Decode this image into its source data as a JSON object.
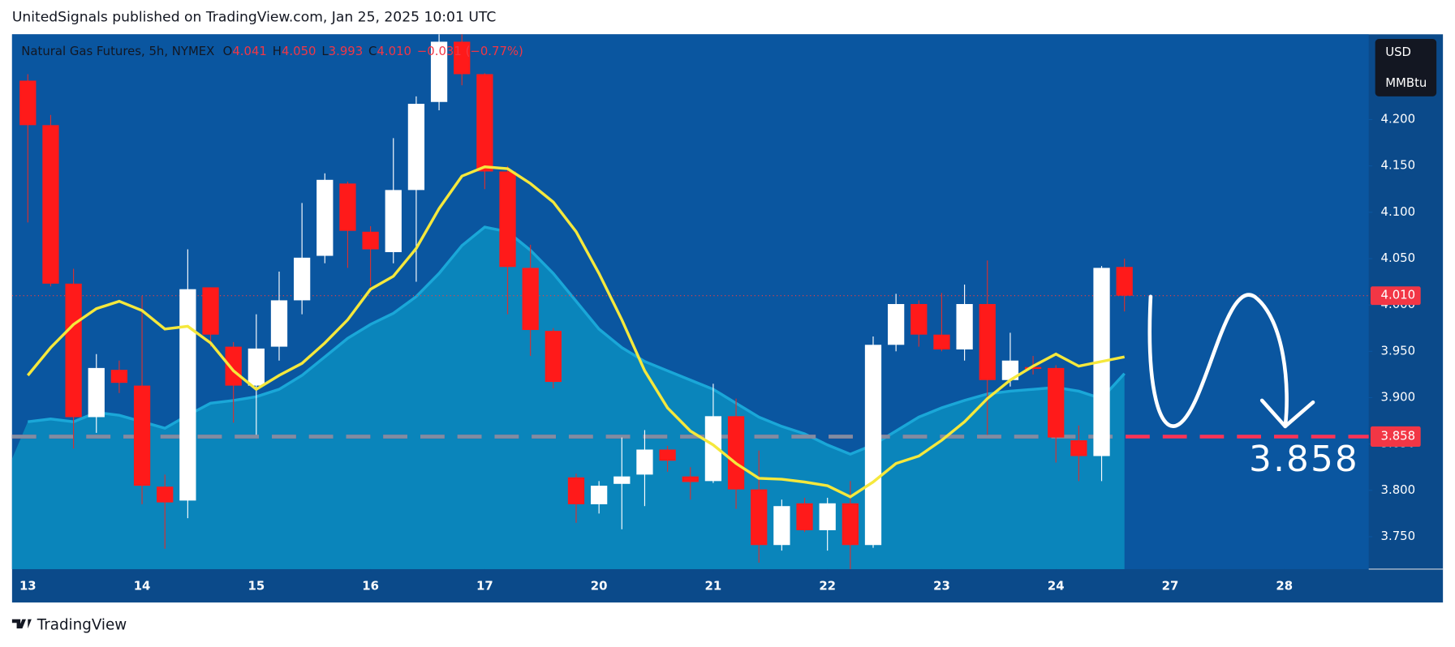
{
  "header": {
    "published": "UnitedSignals published on TradingView.com, Jan 25, 2025 10:01 UTC",
    "brand": "TradingView"
  },
  "chart_data": {
    "type": "candlestick",
    "title": "Natural Gas Futures, 5h, NYMEX",
    "legend_keys": [
      "O",
      "H",
      "L",
      "C"
    ],
    "legend_values": [
      "4.041",
      "4.050",
      "3.993",
      "4.010"
    ],
    "change": "−0.031 (−0.77%)",
    "currency": "USD",
    "unit": "MMBtu",
    "open": [
      4.242,
      4.194,
      4.023,
      3.879,
      3.93,
      3.913,
      3.804,
      3.789,
      4.019,
      3.955,
      3.913,
      3.955,
      4.005,
      4.053,
      4.131,
      4.079,
      4.057,
      4.124,
      4.219,
      4.284,
      4.249,
      4.144,
      4.04,
      3.972,
      3.814,
      3.785,
      3.807,
      3.817,
      3.844,
      3.815,
      3.81,
      3.88,
      3.801,
      3.741,
      3.786,
      3.757,
      3.786,
      3.741,
      3.957,
      4.001,
      3.968,
      3.952,
      4.001,
      3.919,
      3.933,
      3.932,
      3.854,
      3.837,
      4.041
    ],
    "high": [
      4.249,
      4.205,
      4.039,
      3.947,
      3.94,
      4.01,
      3.817,
      4.06,
      4.019,
      3.96,
      3.99,
      4.036,
      4.11,
      4.142,
      4.133,
      4.085,
      4.18,
      4.225,
      4.292,
      4.292,
      4.25,
      4.15,
      4.065,
      3.975,
      3.818,
      3.81,
      3.857,
      3.865,
      3.848,
      3.825,
      3.915,
      3.899,
      3.843,
      3.79,
      3.792,
      3.792,
      3.81,
      3.966,
      4.012,
      4.005,
      4.013,
      4.022,
      4.048,
      3.97,
      3.945,
      3.935,
      3.87,
      4.042,
      4.05
    ],
    "low": [
      4.089,
      4.02,
      3.845,
      3.862,
      3.905,
      3.785,
      3.737,
      3.77,
      3.955,
      3.873,
      3.86,
      3.94,
      3.99,
      4.045,
      4.04,
      4.02,
      4.045,
      4.025,
      4.21,
      4.237,
      4.125,
      3.99,
      3.945,
      3.91,
      3.765,
      3.775,
      3.758,
      3.783,
      3.82,
      3.79,
      3.808,
      3.78,
      3.722,
      3.735,
      3.755,
      3.735,
      3.715,
      3.738,
      3.95,
      3.955,
      3.95,
      3.94,
      3.86,
      3.912,
      3.925,
      3.83,
      3.81,
      3.81,
      3.993
    ],
    "close": [
      4.194,
      4.023,
      3.879,
      3.932,
      3.916,
      3.805,
      3.787,
      4.017,
      3.968,
      3.913,
      3.953,
      4.005,
      4.051,
      4.135,
      4.08,
      4.06,
      4.124,
      4.217,
      4.284,
      4.249,
      4.144,
      4.041,
      3.973,
      3.917,
      3.785,
      3.805,
      3.815,
      3.844,
      3.832,
      3.809,
      3.88,
      3.801,
      3.741,
      3.783,
      3.757,
      3.786,
      3.741,
      3.957,
      4.001,
      3.968,
      3.952,
      4.001,
      3.919,
      3.94,
      3.931,
      3.857,
      3.837,
      4.04,
      4.01
    ],
    "up_color": "#ffffff",
    "down_color": "#ff1a1a",
    "series": [
      {
        "color": "#f5e83c",
        "values": [
          3.924,
          3.954,
          3.979,
          3.996,
          4.004,
          3.994,
          3.974,
          3.977,
          3.959,
          3.929,
          3.909,
          3.924,
          3.937,
          3.959,
          3.984,
          4.017,
          4.031,
          4.061,
          4.104,
          4.139,
          4.149,
          4.147,
          4.131,
          4.111,
          4.079,
          4.034,
          3.984,
          3.929,
          3.889,
          3.864,
          3.849,
          3.829,
          3.813,
          3.812,
          3.809,
          3.805,
          3.793,
          3.809,
          3.829,
          3.837,
          3.854,
          3.874,
          3.899,
          3.919,
          3.934,
          3.947,
          3.934,
          3.939,
          3.944
        ]
      },
      {
        "color": "#0a8dc0",
        "values": [
          3.874,
          3.877,
          3.874,
          3.884,
          3.881,
          3.874,
          3.867,
          3.881,
          3.894,
          3.897,
          3.901,
          3.909,
          3.924,
          3.944,
          3.964,
          3.979,
          3.991,
          4.009,
          4.034,
          4.064,
          4.084,
          4.079,
          4.059,
          4.034,
          4.004,
          3.974,
          3.954,
          3.939,
          3.929,
          3.919,
          3.909,
          3.894,
          3.879,
          3.869,
          3.861,
          3.849,
          3.839,
          3.849,
          3.864,
          3.879,
          3.889,
          3.897,
          3.904,
          3.907,
          3.909,
          3.911,
          3.907,
          3.899,
          3.926
        ]
      }
    ],
    "last_price": 4.01,
    "last_price_label": "4.010",
    "target": 3.858,
    "xlim": [
      -0.69,
      58.69
    ],
    "xticks": [
      {
        "value": 0,
        "label": "13"
      },
      {
        "value": 5,
        "label": "14"
      },
      {
        "value": 10,
        "label": "15"
      },
      {
        "value": 15,
        "label": "16"
      },
      {
        "value": 20,
        "label": "17"
      },
      {
        "value": 25,
        "label": "20"
      },
      {
        "value": 30,
        "label": "21"
      },
      {
        "value": 35,
        "label": "22"
      },
      {
        "value": 40,
        "label": "23"
      },
      {
        "value": 45,
        "label": "24"
      },
      {
        "value": 50,
        "label": "27"
      },
      {
        "value": 55,
        "label": "28"
      }
    ],
    "ylim": [
      3.715,
      4.292
    ],
    "yticks": [
      {
        "value": 4.2,
        "label": "4.200"
      },
      {
        "value": 4.15,
        "label": "4.150"
      },
      {
        "value": 4.1,
        "label": "4.100"
      },
      {
        "value": 4.05,
        "label": "4.050"
      },
      {
        "value": 4.0,
        "label": "4.000"
      },
      {
        "value": 3.95,
        "label": "3.950"
      },
      {
        "value": 3.9,
        "label": "3.900"
      },
      {
        "value": 3.85,
        "label": "3.850"
      },
      {
        "value": 3.8,
        "label": "3.800"
      },
      {
        "value": 3.75,
        "label": "3.750"
      }
    ]
  }
}
